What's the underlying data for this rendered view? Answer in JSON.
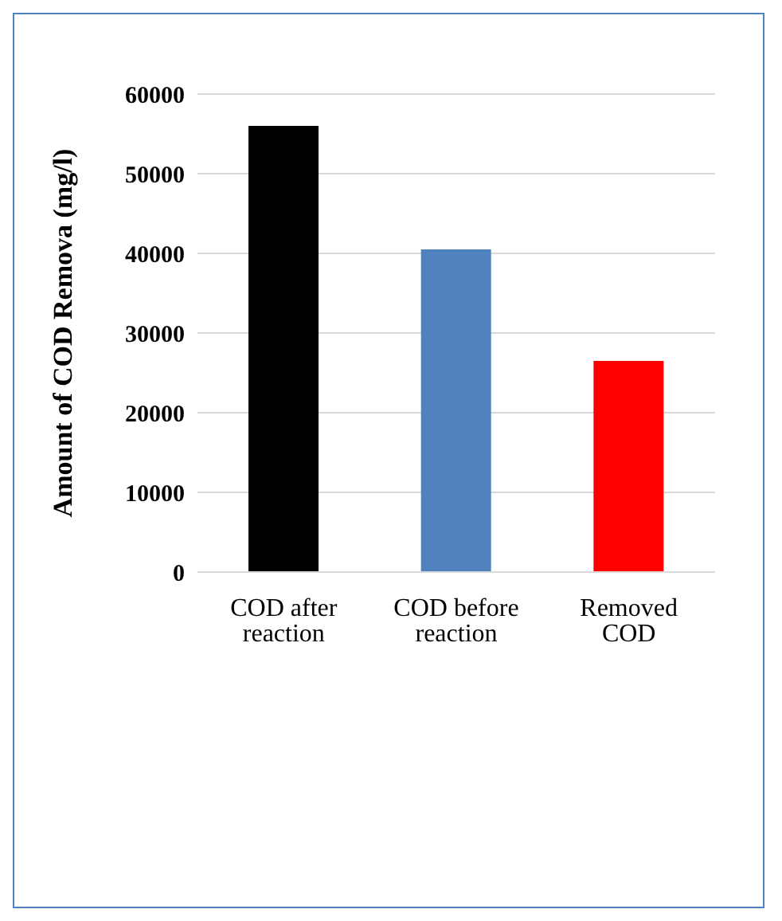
{
  "chart_data": {
    "type": "bar",
    "categories": [
      "COD after reaction",
      "COD before reaction",
      "Removed COD"
    ],
    "values": [
      56000,
      40500,
      26500
    ],
    "colors": [
      "#000000",
      "#4f81bd",
      "#ff0000"
    ],
    "ylabel": "Amount of COD Remova (mg/l)",
    "ylim": [
      0,
      60000
    ],
    "yticks": [
      0,
      10000,
      20000,
      30000,
      40000,
      50000,
      60000
    ],
    "grid": "y"
  }
}
